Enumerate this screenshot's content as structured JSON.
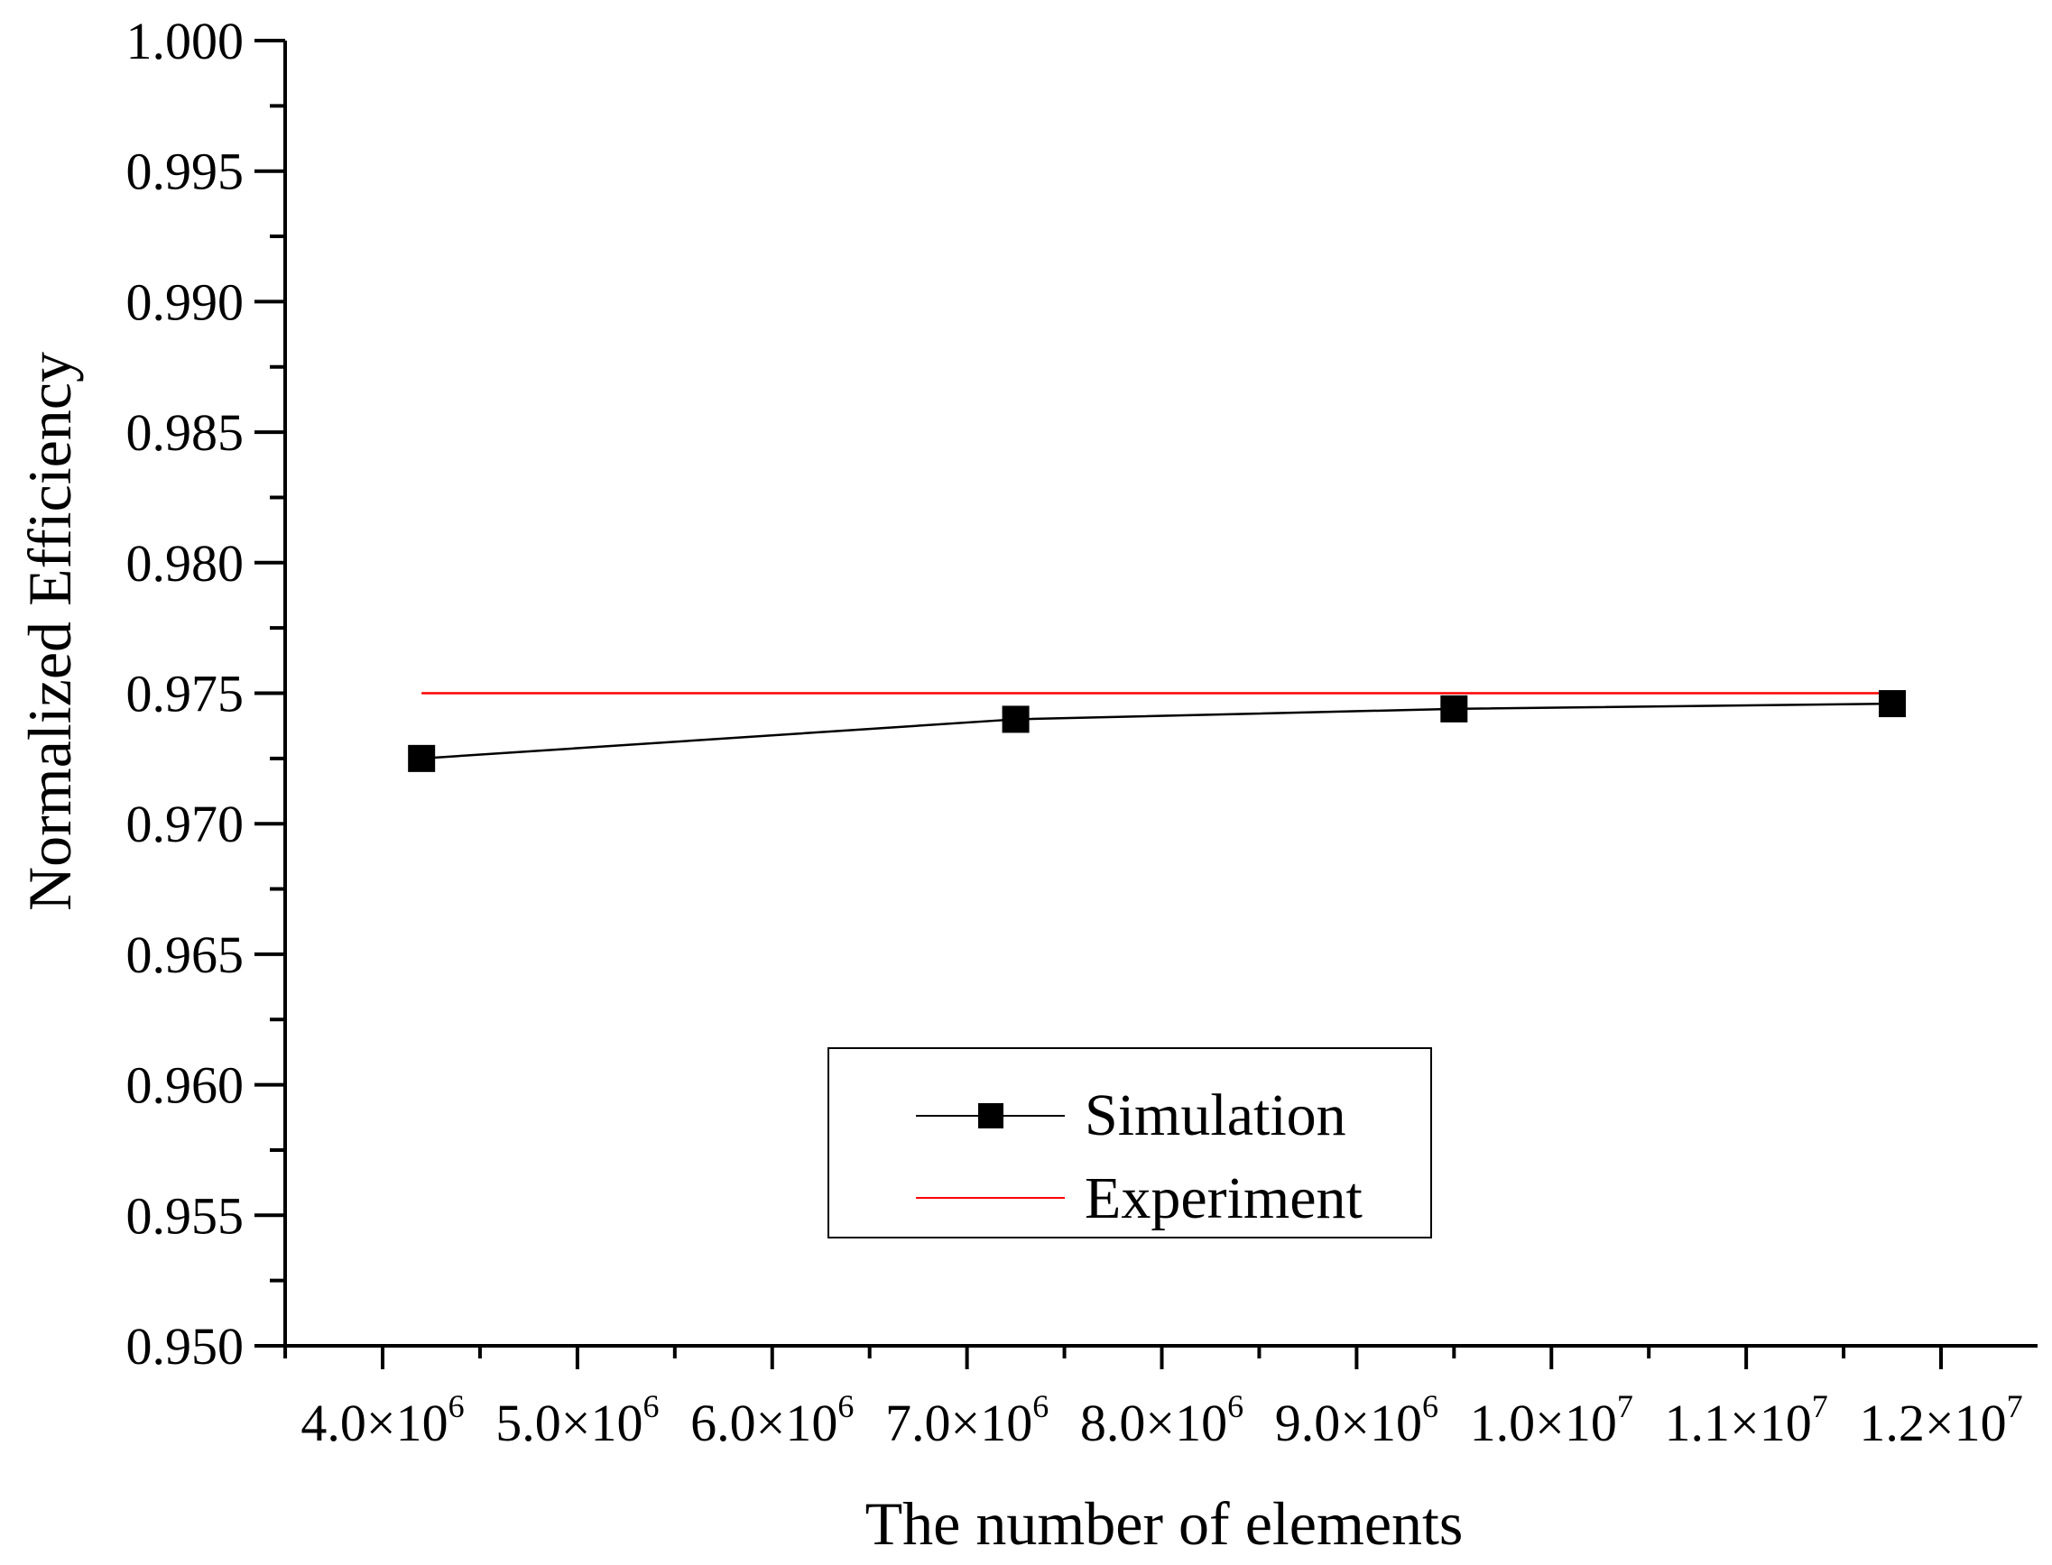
{
  "chart_data": {
    "type": "line",
    "title": "",
    "xlabel": "The number of elements",
    "ylabel": "Normalized Efficiency",
    "xlim": [
      3500000,
      12500000
    ],
    "ylim": [
      0.95,
      1.0
    ],
    "grid": false,
    "legend_position": "bottom-center",
    "x_ticks": [
      4000000,
      5000000,
      6000000,
      7000000,
      8000000,
      9000000,
      10000000,
      11000000,
      12000000
    ],
    "x_tick_labels": [
      {
        "mantissa": "4.0",
        "times": "×10",
        "exp": "6"
      },
      {
        "mantissa": "5.0",
        "times": "×10",
        "exp": "6"
      },
      {
        "mantissa": "6.0",
        "times": "×10",
        "exp": "6"
      },
      {
        "mantissa": "7.0",
        "times": "×10",
        "exp": "6"
      },
      {
        "mantissa": "8.0",
        "times": "×10",
        "exp": "6"
      },
      {
        "mantissa": "9.0",
        "times": "×10",
        "exp": "6"
      },
      {
        "mantissa": "1.0",
        "times": "×10",
        "exp": "7"
      },
      {
        "mantissa": "1.1",
        "times": "×10",
        "exp": "7"
      },
      {
        "mantissa": "1.2",
        "times": "×10",
        "exp": "7"
      }
    ],
    "y_ticks": [
      0.95,
      0.955,
      0.96,
      0.965,
      0.97,
      0.975,
      0.98,
      0.985,
      0.99,
      0.995,
      1.0
    ],
    "y_tick_labels": [
      "0.950",
      "0.955",
      "0.960",
      "0.965",
      "0.970",
      "0.975",
      "0.980",
      "0.985",
      "0.990",
      "0.995",
      "1.000"
    ],
    "series": [
      {
        "name": "Simulation",
        "color": "#000000",
        "marker": "square",
        "x": [
          4200000,
          7250000,
          9500000,
          11750000
        ],
        "y": [
          0.9725,
          0.974,
          0.9744,
          0.9746
        ]
      },
      {
        "name": "Experiment",
        "color": "#ff0000",
        "marker": "none",
        "x": [
          4200000,
          11750000
        ],
        "y": [
          0.975,
          0.975
        ]
      }
    ]
  }
}
